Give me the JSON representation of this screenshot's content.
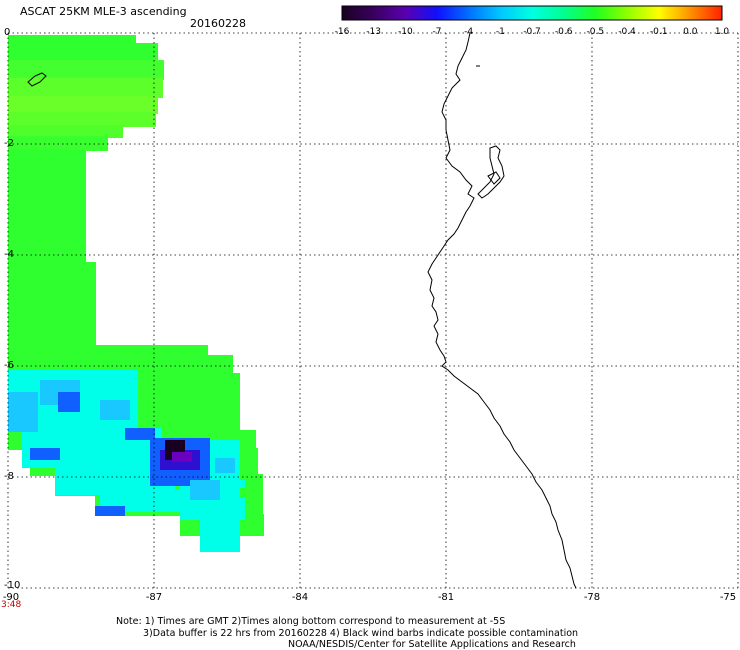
{
  "header": {
    "title": "ASCAT 25KM MLE-3 ascending",
    "date": "20160228"
  },
  "colorbar": {
    "ticks": [
      "-16",
      "-13",
      "-10",
      "-7",
      "-4",
      "-1",
      "-0.7",
      "-0.6",
      "-0.5",
      "-0.4",
      "-0.1",
      "0.0",
      "1.0"
    ],
    "colors": [
      "#1a0020",
      "#3a0060",
      "#5a00b0",
      "#1010ff",
      "#0070ff",
      "#00c8ff",
      "#00ffe0",
      "#00ff90",
      "#20ff20",
      "#90ff00",
      "#ffff00",
      "#ff9000",
      "#ff2000"
    ]
  },
  "axes": {
    "y_ticks": [
      "0",
      "-2",
      "-4",
      "-6",
      "-8",
      "-10"
    ],
    "x_ticks": [
      "-90",
      "-87",
      "-84",
      "-81",
      "-78",
      "-75"
    ],
    "time_label": "3:48"
  },
  "notes": {
    "line1": "Note: 1) Times are GMT 2)Times along bottom correspond to measurement at -5S",
    "line2": "3)Data buffer is 22 hrs from 20160228 4) Black wind barbs indicate possible contamination",
    "line3": "NOAA/NESDIS/Center for Satellite Applications and Research"
  },
  "colors": {
    "green": "#2fff2f",
    "light_green": "#7dff2a",
    "cyan": "#00ffe8",
    "sky": "#18c8ff",
    "blue": "#1060ff",
    "dark": "#1a0020",
    "purple": "#6a00c0"
  }
}
